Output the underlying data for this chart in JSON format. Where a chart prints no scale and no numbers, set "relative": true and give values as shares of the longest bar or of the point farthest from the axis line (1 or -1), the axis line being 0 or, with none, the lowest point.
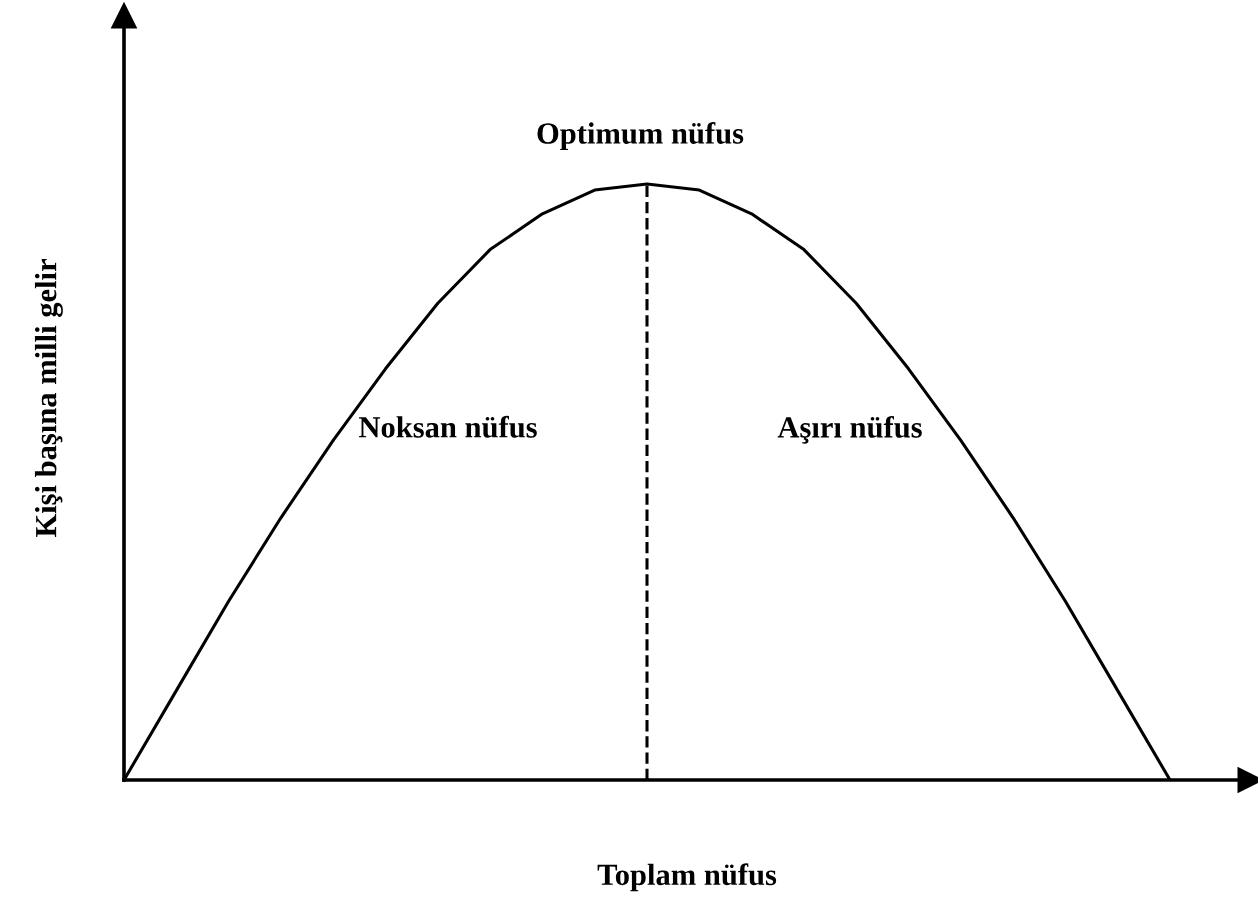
{
  "chart_data": {
    "type": "line",
    "relative": true,
    "xlabel": "Toplam nüfus",
    "ylabel": "Kişi başına milli gelir",
    "categories": [
      null,
      null,
      null,
      null,
      null,
      null,
      null,
      null,
      null,
      null,
      null,
      null,
      null,
      null,
      null,
      null,
      null,
      null,
      null,
      null,
      null
    ],
    "series": [
      {
        "color": "#000000",
        "values": [
          0,
          0.15,
          0.3,
          0.44,
          0.57,
          0.69,
          0.8,
          0.89,
          0.95,
          0.99,
          1,
          0.99,
          0.95,
          0.89,
          0.8,
          0.69,
          0.57,
          0.44,
          0.3,
          0.15,
          0
        ]
      }
    ],
    "annotations": [
      "Optimum nüfus",
      "Noksan nüfus",
      "Aşırı nüfus"
    ],
    "tick_labels": false,
    "grid": false,
    "legend": false,
    "marker": "none",
    "line_style": "solid"
  }
}
